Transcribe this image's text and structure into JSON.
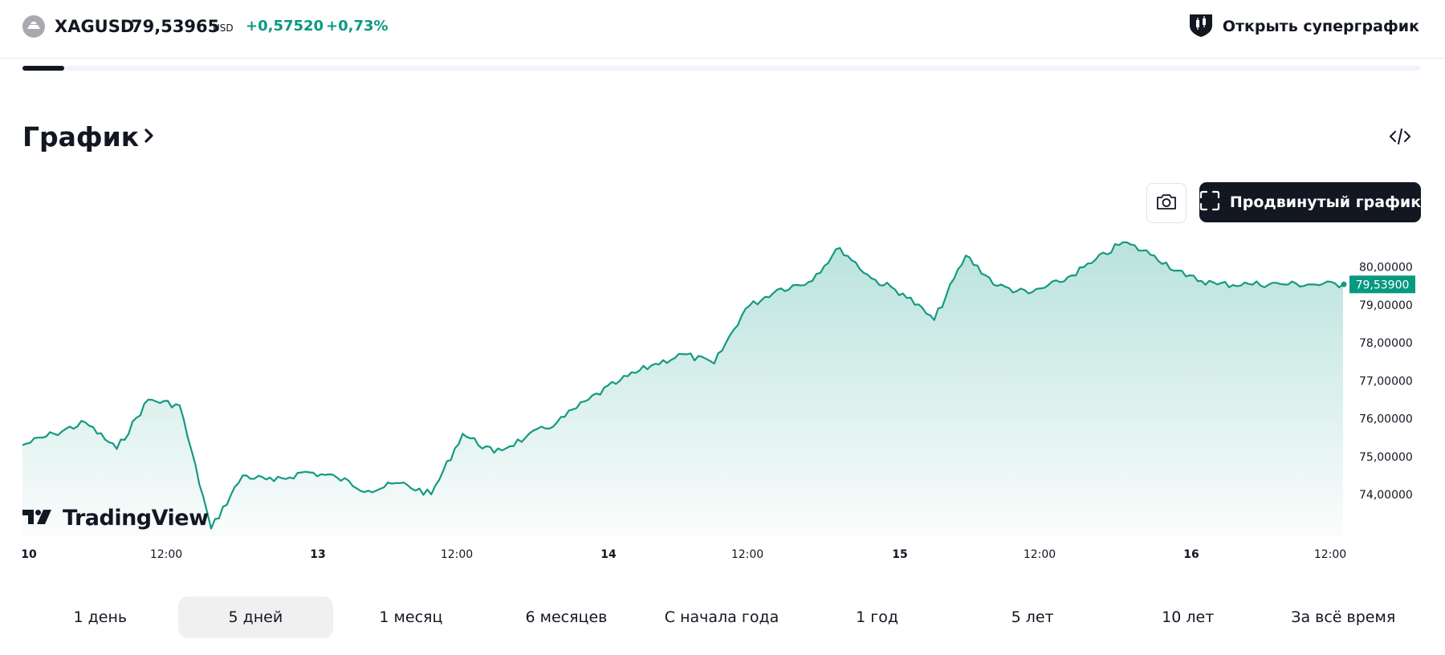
{
  "header": {
    "symbol": "XAGUSD",
    "price": "79,53965",
    "currency": "USD",
    "change": "+0,57520",
    "change_pct": "+0,73%",
    "supergraph_label": "Открыть суперграфик",
    "progress_fraction": 0.03
  },
  "section": {
    "title": "График"
  },
  "toolbar": {
    "advanced_chart_label": "Продвинутый график"
  },
  "branding": {
    "tradingview": "TradingView"
  },
  "colors": {
    "accent": "#089981",
    "line": "#149a82",
    "text": "#131722",
    "button_dark": "#131722"
  },
  "icons": {
    "symbol": "silver-coin-icon",
    "supergraph": "candlestick-shield-icon",
    "embed": "code-embed-icon",
    "camera": "camera-icon",
    "fullscreen": "fullscreen-icon",
    "chevron": "chevron-right-icon"
  },
  "range_tabs": [
    {
      "label": "1 день",
      "active": false
    },
    {
      "label": "5 дней",
      "active": true
    },
    {
      "label": "1 месяц",
      "active": false
    },
    {
      "label": "6 месяцев",
      "active": false
    },
    {
      "label": "С начала года",
      "active": false
    },
    {
      "label": "1 год",
      "active": false
    },
    {
      "label": "5 лет",
      "active": false
    },
    {
      "label": "10 лет",
      "active": false
    },
    {
      "label": "За всё время",
      "active": false
    }
  ],
  "chart_data": {
    "type": "area",
    "series": [
      {
        "name": "XAGUSD",
        "x": [
          "Mon 10 00:00",
          "Mon 10 06:00",
          "Mon 10 12:00",
          "Mon 10 18:00",
          "Mon 10 20:00",
          "Mon 10 22:00",
          "Tue 13 00:00",
          "Tue 13 01:00",
          "Tue 13 03:00",
          "Tue 13 06:00",
          "Tue 13 09:00",
          "Tue 13 12:00",
          "Tue 13 15:00",
          "Tue 13 18:00",
          "Tue 13 20:00",
          "Tue 13 22:00",
          "Tue 13 23:00",
          "Wed 14 03:00",
          "Wed 14 06:00",
          "Wed 14 09:00",
          "Wed 14 12:00",
          "Wed 14 15:00",
          "Wed 14 18:00",
          "Wed 14 20:00",
          "Wed 14 22:00",
          "Thu 15 01:00",
          "Thu 15 03:00",
          "Thu 15 05:00",
          "Thu 15 07:00",
          "Thu 15 09:00",
          "Thu 15 11:00",
          "Thu 15 13:00",
          "Thu 15 15:00",
          "Thu 15 18:00",
          "Thu 15 20:00",
          "Thu 15 22:00",
          "Fri 16 00:00",
          "Fri 16 03:00",
          "Fri 16 06:00",
          "Fri 16 08:00",
          "Fri 16 10:00",
          "Fri 16 12:00",
          "Fri 16 14:00"
        ],
        "values": [
          75.3,
          75.6,
          75.9,
          75.2,
          76.5,
          76.35,
          73.1,
          74.5,
          74.35,
          74.6,
          74.45,
          74.1,
          74.3,
          74.0,
          75.6,
          75.1,
          75.5,
          75.9,
          76.5,
          77.0,
          77.4,
          77.7,
          77.45,
          78.9,
          79.4,
          79.6,
          80.5,
          79.7,
          79.3,
          78.6,
          80.3,
          79.5,
          79.3,
          79.6,
          80.1,
          80.65,
          80.3,
          79.75,
          79.54,
          79.55,
          79.55,
          79.54,
          79.539
        ]
      }
    ],
    "x_tick_labels": [
      "10",
      "12:00",
      "13",
      "12:00",
      "14",
      "12:00",
      "15",
      "12:00",
      "16",
      "12:00"
    ],
    "y_tick_labels": [
      "74,00000",
      "75,00000",
      "76,00000",
      "77,00000",
      "78,00000",
      "79,00000",
      "80,00000"
    ],
    "ylim": [
      72.9,
      80.9
    ],
    "last_value_label": "79,53900",
    "grid": false,
    "legend": "none",
    "title": "",
    "xlabel": "",
    "ylabel": ""
  }
}
